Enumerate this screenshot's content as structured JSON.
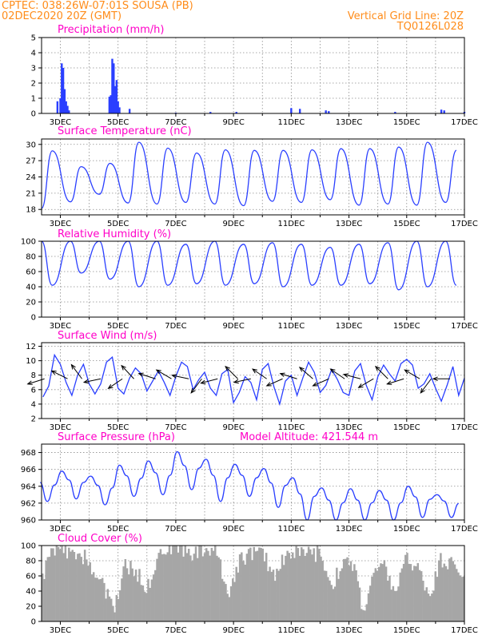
{
  "header": {
    "line1": "CPTEC:   038:26W-07:01S   SOUSA (PB)",
    "line2": "02DEC2020 20Z (GMT)",
    "grid_note": "Vertical Grid Line: 20Z",
    "run_code": "TQ0126L028"
  },
  "colors": {
    "header": "#ff8c1a",
    "panel_title": "#ff00c8",
    "series": "#2a3fff",
    "cloud": "#a6a6a6",
    "wind_arrows": "#000000"
  },
  "chart_data": [
    {
      "id": "precip",
      "type": "bar",
      "title": "Precipitation (mm/h)",
      "x_ticks": [
        "3DEC",
        "5DEC",
        "7DEC",
        "9DEC",
        "11DEC",
        "13DEC",
        "15DEC",
        "17DEC"
      ],
      "x_range_days": [
        2.35,
        17.0
      ],
      "ylim": [
        0,
        5
      ],
      "y_ticks": [
        0,
        1,
        2,
        3,
        4,
        5
      ],
      "grid": true,
      "series": [
        {
          "t": [
            2.9,
            3.0,
            3.05,
            3.1,
            3.15,
            3.2,
            3.25,
            3.3,
            4.7,
            4.75,
            4.8,
            4.85,
            4.9,
            4.95,
            5.0,
            5.05,
            5.4,
            7.0,
            8.2,
            9.1,
            11.0,
            11.3,
            12.2,
            12.3,
            14.6,
            16.2,
            16.3,
            17.0
          ],
          "values": [
            0.8,
            1.0,
            3.3,
            3.0,
            1.6,
            0.8,
            0.5,
            0.2,
            1.1,
            1.2,
            3.6,
            3.3,
            1.8,
            2.2,
            0.8,
            0.4,
            0.3,
            0.05,
            0.1,
            0.1,
            0.35,
            0.3,
            0.2,
            0.15,
            0.1,
            0.25,
            0.2,
            0.1
          ]
        }
      ]
    },
    {
      "id": "temp",
      "type": "line",
      "title": "Surface Temperature (nC)",
      "x_ticks": [
        "3DEC",
        "5DEC",
        "7DEC",
        "9DEC",
        "11DEC",
        "13DEC",
        "15DEC",
        "17DEC"
      ],
      "x_range_days": [
        2.35,
        17.0
      ],
      "ylim": [
        17,
        31
      ],
      "y_ticks": [
        18,
        21,
        24,
        27,
        30
      ],
      "grid": true,
      "daily_max": [
        28.8,
        25.9,
        26.5,
        30.4,
        29.3,
        28.4,
        29.0,
        28.9,
        28.9,
        29.0,
        29.2,
        29.2,
        29.5,
        30.4,
        28.9
      ],
      "daily_min": [
        18.2,
        19.4,
        20.8,
        19.2,
        19.0,
        19.3,
        19.0,
        18.7,
        19.5,
        19.3,
        19.8,
        18.8,
        19.0,
        18.8,
        19.3
      ]
    },
    {
      "id": "rh",
      "type": "line",
      "title": "Relative Humidity (%)",
      "x_ticks": [
        "3DEC",
        "5DEC",
        "7DEC",
        "9DEC",
        "11DEC",
        "13DEC",
        "15DEC",
        "17DEC"
      ],
      "x_range_days": [
        2.35,
        17.0
      ],
      "ylim": [
        0,
        100
      ],
      "y_ticks": [
        0,
        20,
        40,
        60,
        80,
        100
      ],
      "grid": true,
      "daily_min": [
        42,
        58,
        50,
        40,
        42,
        44,
        42,
        44,
        40,
        42,
        42,
        44,
        36,
        40,
        42
      ],
      "daily_max": [
        100,
        100,
        100,
        100,
        100,
        96,
        100,
        96,
        98,
        96,
        92,
        96,
        98,
        100,
        100
      ]
    },
    {
      "id": "wind",
      "type": "line",
      "title": "Surface Wind (m/s)",
      "x_ticks": [
        "3DEC",
        "5DEC",
        "7DEC",
        "9DEC",
        "11DEC",
        "13DEC",
        "15DEC",
        "17DEC"
      ],
      "x_range_days": [
        2.35,
        17.0
      ],
      "ylim": [
        2,
        12.5
      ],
      "y_ticks": [
        2,
        4,
        6,
        8,
        10,
        12
      ],
      "grid": true,
      "t": [
        2.4,
        2.6,
        2.8,
        3.0,
        3.2,
        3.4,
        3.6,
        3.8,
        4.0,
        4.2,
        4.4,
        4.6,
        4.8,
        5.0,
        5.2,
        5.4,
        5.6,
        5.8,
        6.0,
        6.2,
        6.4,
        6.6,
        6.8,
        7.0,
        7.2,
        7.4,
        7.6,
        7.8,
        8.0,
        8.2,
        8.4,
        8.6,
        8.8,
        9.0,
        9.2,
        9.4,
        9.6,
        9.8,
        10.0,
        10.2,
        10.4,
        10.6,
        10.8,
        11.0,
        11.2,
        11.4,
        11.6,
        11.8,
        12.0,
        12.2,
        12.4,
        12.6,
        12.8,
        13.0,
        13.2,
        13.4,
        13.6,
        13.8,
        14.0,
        14.2,
        14.4,
        14.6,
        14.8,
        15.0,
        15.2,
        15.4,
        15.6,
        15.8,
        16.0,
        16.2,
        16.4,
        16.6,
        16.8,
        17.0
      ],
      "speed": [
        5.0,
        6.5,
        10.8,
        9.5,
        7.0,
        5.2,
        8.0,
        9.5,
        6.8,
        5.4,
        6.8,
        9.8,
        10.5,
        6.2,
        5.4,
        7.6,
        9.0,
        8.2,
        5.8,
        7.2,
        8.6,
        7.0,
        5.2,
        7.8,
        9.8,
        9.2,
        6.0,
        7.4,
        8.4,
        6.2,
        5.2,
        8.2,
        8.8,
        4.2,
        5.6,
        7.8,
        7.0,
        4.6,
        8.8,
        9.6,
        6.4,
        4.0,
        7.2,
        8.0,
        5.2,
        7.6,
        9.8,
        8.4,
        5.6,
        6.6,
        8.8,
        7.4,
        5.6,
        5.2,
        8.6,
        9.6,
        6.6,
        4.6,
        7.8,
        9.4,
        8.2,
        7.2,
        9.6,
        10.2,
        9.4,
        6.2,
        6.8,
        8.2,
        6.2,
        4.4,
        6.6,
        9.2,
        5.2,
        7.6
      ],
      "vectors": [
        {
          "t": 2.45,
          "u": -0.95,
          "v": -0.3
        },
        {
          "t": 3.25,
          "u": -0.9,
          "v": 0.45
        },
        {
          "t": 3.75,
          "u": -0.6,
          "v": 0.8
        },
        {
          "t": 4.4,
          "u": -0.95,
          "v": -0.2
        },
        {
          "t": 5.15,
          "u": -0.8,
          "v": -0.55
        },
        {
          "t": 5.55,
          "u": -0.7,
          "v": 0.75
        },
        {
          "t": 6.3,
          "u": -0.95,
          "v": 0.3
        },
        {
          "t": 6.85,
          "u": -0.85,
          "v": 0.5
        },
        {
          "t": 7.45,
          "u": -0.95,
          "v": 0.2
        },
        {
          "t": 7.9,
          "u": -0.6,
          "v": -0.8
        },
        {
          "t": 8.45,
          "u": -0.95,
          "v": -0.25
        },
        {
          "t": 9.15,
          "u": -0.7,
          "v": 0.7
        },
        {
          "t": 9.6,
          "u": -0.95,
          "v": -0.2
        },
        {
          "t": 10.15,
          "u": -0.8,
          "v": 0.55
        },
        {
          "t": 10.7,
          "u": -0.9,
          "v": -0.4
        },
        {
          "t": 11.2,
          "u": -0.95,
          "v": 0.3
        },
        {
          "t": 11.75,
          "u": -0.75,
          "v": 0.65
        },
        {
          "t": 12.3,
          "u": -0.9,
          "v": -0.4
        },
        {
          "t": 12.85,
          "u": -0.8,
          "v": 0.55
        },
        {
          "t": 13.4,
          "u": -0.95,
          "v": 0.25
        },
        {
          "t": 13.85,
          "u": -0.85,
          "v": -0.5
        },
        {
          "t": 14.35,
          "u": -0.7,
          "v": 0.7
        },
        {
          "t": 14.9,
          "u": -0.95,
          "v": -0.3
        },
        {
          "t": 15.45,
          "u": -0.85,
          "v": 0.5
        },
        {
          "t": 15.85,
          "u": -0.6,
          "v": -0.8
        },
        {
          "t": 16.5,
          "u": -0.95,
          "v": 0.0
        }
      ]
    },
    {
      "id": "pres",
      "type": "line",
      "title": "Surface Pressure (hPa)",
      "annotation": "Model Altitude: 421.544 m",
      "x_ticks": [
        "3DEC",
        "5DEC",
        "7DEC",
        "9DEC",
        "11DEC",
        "13DEC",
        "15DEC",
        "17DEC"
      ],
      "x_range_days": [
        2.35,
        17.0
      ],
      "ylim": [
        960,
        969
      ],
      "y_ticks": [
        960,
        962,
        964,
        966,
        968
      ],
      "grid": true,
      "daily_max": [
        965.5,
        965.8,
        965.2,
        966.5,
        967.0,
        968.1,
        967.2,
        966.6,
        966.1,
        965.0,
        963.8,
        963.7,
        963.5,
        964.0,
        963.0
      ],
      "daily_min": [
        962.2,
        962.5,
        961.8,
        962.8,
        963.0,
        963.6,
        962.2,
        962.8,
        961.5,
        960.0,
        959.7,
        959.8,
        960.0,
        960.3,
        960.3
      ],
      "trend": [
        0.0,
        0.1,
        -0.1,
        0.4,
        0.4,
        0.6,
        0.2,
        0.0,
        -0.5,
        -1.0,
        -1.7,
        -2.0,
        -2.0,
        -1.8,
        -2.0
      ]
    },
    {
      "id": "cloud",
      "type": "bar",
      "title": "Cloud Cover (%)",
      "x_ticks": [
        "3DEC",
        "5DEC",
        "7DEC",
        "9DEC",
        "11DEC",
        "13DEC",
        "15DEC",
        "17DEC"
      ],
      "x_range_days": [
        2.35,
        17.0
      ],
      "ylim": [
        0,
        100
      ],
      "y_ticks": [
        0,
        20,
        40,
        60,
        80,
        100
      ],
      "grid": true,
      "profile_t": [
        2.35,
        2.7,
        3.1,
        3.5,
        3.9,
        4.2,
        4.6,
        4.9,
        5.2,
        5.6,
        6.0,
        6.4,
        6.8,
        7.2,
        7.6,
        8.0,
        8.4,
        8.8,
        9.2,
        9.6,
        10.0,
        10.4,
        10.8,
        11.2,
        11.6,
        12.0,
        12.4,
        12.8,
        13.2,
        13.5,
        13.8,
        14.2,
        14.6,
        15.0,
        15.4,
        15.8,
        16.2,
        16.6,
        17.0
      ],
      "profile_cover": [
        55,
        92,
        95,
        82,
        88,
        60,
        40,
        18,
        72,
        68,
        42,
        92,
        98,
        96,
        90,
        95,
        94,
        38,
        78,
        92,
        90,
        62,
        88,
        92,
        88,
        90,
        48,
        78,
        72,
        12,
        58,
        74,
        38,
        82,
        70,
        36,
        82,
        76,
        60
      ]
    }
  ]
}
